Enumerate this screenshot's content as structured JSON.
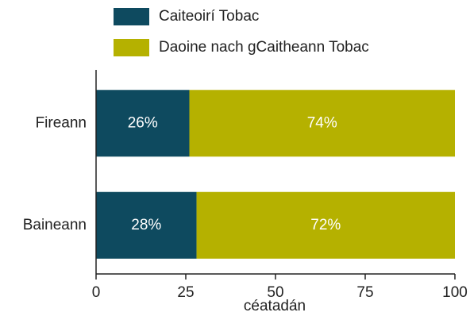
{
  "chart_data": {
    "type": "bar",
    "orientation": "horizontal",
    "stacked": true,
    "categories": [
      "Fireann",
      "Baineann"
    ],
    "series": [
      {
        "name": "Caiteoirí Tobac",
        "color": "#0e4a5f",
        "values": [
          26,
          28
        ],
        "value_labels": [
          "26%",
          "28%"
        ]
      },
      {
        "name": "Daoine nach gCaitheann Tobac",
        "color": "#b5b100",
        "values": [
          74,
          72
        ],
        "value_labels": [
          "74%",
          "72%"
        ]
      }
    ],
    "xlabel": "céatadán",
    "xlim": [
      0,
      100
    ],
    "xticks": [
      0,
      25,
      50,
      75,
      100
    ]
  }
}
